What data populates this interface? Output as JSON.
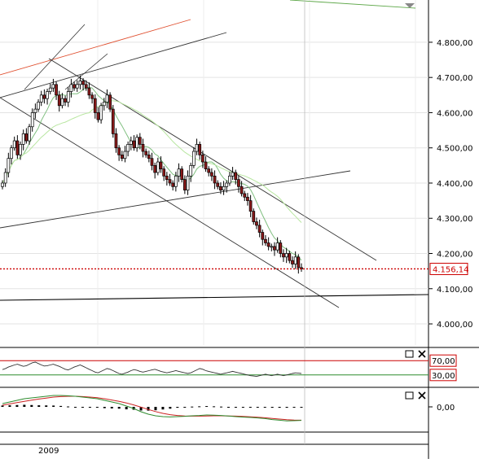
{
  "chart_data": [
    {
      "type": "candlestick",
      "panel": "price",
      "xlabel": "2009",
      "y_ticks": [
        "4.800,00",
        "4.700,00",
        "4.600,00",
        "4.500,00",
        "4.400,00",
        "4.300,00",
        "4.200,00",
        "4.100,00",
        "4.000,00"
      ],
      "y_tick_values": [
        4800,
        4700,
        4600,
        4500,
        4400,
        4300,
        4200,
        4100,
        4000
      ],
      "ylim": [
        3940,
        4920
      ],
      "last_price": 4156.14,
      "last_price_label": "4.156,14",
      "grid": true,
      "colors": {
        "up": "#ffffff",
        "down": "#8b1a1a",
        "wick": "#000000",
        "ma_fast": "#7fbf7f",
        "ma_slow": "#b8e6a0",
        "trend": "#333333",
        "trend_red": "#e05030",
        "last_line": "#cc0000"
      },
      "close": [
        4400,
        4430,
        4470,
        4500,
        4520,
        4480,
        4510,
        4540,
        4520,
        4560,
        4600,
        4610,
        4630,
        4650,
        4640,
        4660,
        4670,
        4680,
        4650,
        4620,
        4640,
        4630,
        4660,
        4680,
        4670,
        4680,
        4690,
        4680,
        4670,
        4650,
        4640,
        4600,
        4580,
        4620,
        4630,
        4650,
        4610,
        4540,
        4500,
        4480,
        4470,
        4490,
        4510,
        4520,
        4500,
        4530,
        4510,
        4490,
        4480,
        4470,
        4450,
        4430,
        4460,
        4440,
        4420,
        4410,
        4400,
        4390,
        4420,
        4440,
        4410,
        4380,
        4420,
        4450,
        4490,
        4510,
        4480,
        4460,
        4440,
        4430,
        4420,
        4400,
        4390,
        4380,
        4390,
        4400,
        4420,
        4430,
        4410,
        4390,
        4370,
        4360,
        4350,
        4320,
        4290,
        4280,
        4260,
        4240,
        4230,
        4220,
        4220,
        4210,
        4230,
        4200,
        4190,
        4200,
        4180,
        4170,
        4190,
        4160,
        4156
      ]
    },
    {
      "type": "line",
      "panel": "oscillator",
      "y_ticks": [
        "70,00",
        "30,00"
      ],
      "y_tick_values": [
        70,
        30
      ],
      "ylim": [
        0,
        100
      ],
      "values": [
        45,
        48,
        52,
        55,
        58,
        60,
        57,
        54,
        56,
        60,
        64,
        66,
        62,
        58,
        55,
        56,
        58,
        60,
        57,
        54,
        50,
        46,
        44,
        48,
        52,
        55,
        58,
        54,
        50,
        46,
        42,
        38,
        36,
        40,
        44,
        48,
        46,
        42,
        38,
        34,
        32,
        35,
        38,
        42,
        45,
        43,
        40,
        38,
        40,
        42,
        44,
        46,
        43,
        40,
        38,
        36,
        38,
        40,
        42,
        40,
        38,
        36,
        34,
        36,
        40,
        44,
        48,
        46,
        42,
        40,
        38,
        36,
        34,
        32,
        34,
        36,
        38,
        40,
        38,
        36,
        34,
        32,
        30,
        28,
        27,
        26,
        28,
        30,
        32,
        30,
        28,
        30,
        32,
        30,
        28,
        30,
        32,
        34,
        36,
        35,
        34
      ]
    },
    {
      "type": "line",
      "panel": "macd",
      "y_ticks": [
        "0,00"
      ],
      "y_tick_values": [
        0
      ],
      "ylim": [
        -14,
        10
      ],
      "macd": [
        2,
        3,
        4,
        5,
        5.5,
        6,
        6.5,
        7,
        7,
        6.8,
        6.5,
        6,
        5.5,
        5,
        4,
        3,
        2,
        0.5,
        -1,
        -3,
        -4.5,
        -5.5,
        -6,
        -6.2,
        -6,
        -5.8,
        -5.5,
        -5.3,
        -5,
        -5.1,
        -5.3,
        -5.6,
        -6,
        -6.3,
        -6.5,
        -6.8,
        -7.2,
        -7.8,
        -8.2,
        -8.6,
        -8.5,
        -8.3
      ],
      "signal": [
        1,
        1.8,
        2.6,
        3.4,
        4.1,
        4.8,
        5.4,
        6,
        6.3,
        6.5,
        6.5,
        6.3,
        6,
        5.6,
        5,
        4.2,
        3.4,
        2.4,
        1.2,
        -0.2,
        -1.6,
        -2.9,
        -4,
        -4.8,
        -5.3,
        -5.6,
        -5.7,
        -5.7,
        -5.6,
        -5.5,
        -5.5,
        -5.6,
        -5.7,
        -5.9,
        -6.1,
        -6.4,
        -6.7,
        -7.1,
        -7.5,
        -7.9,
        -8.1,
        -8.2
      ]
    }
  ]
}
